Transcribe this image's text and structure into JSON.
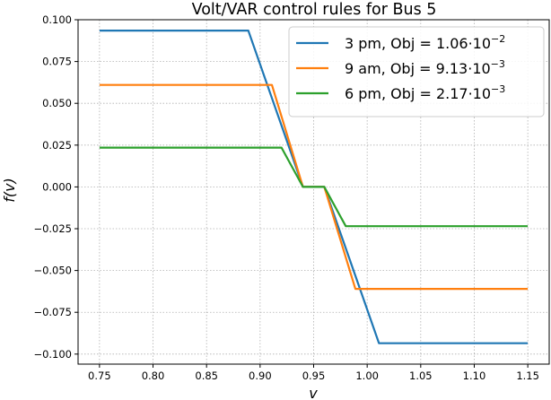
{
  "chart_data": {
    "type": "line",
    "title": "Volt/VAR control rules for Bus 5",
    "xlabel": "v",
    "ylabel": "f(v)",
    "xlim": [
      0.73,
      1.17
    ],
    "ylim": [
      -0.106,
      0.1
    ],
    "xticks": [
      "0.75",
      "0.80",
      "0.85",
      "0.90",
      "0.95",
      "1.00",
      "1.05",
      "1.10",
      "1.15"
    ],
    "yticks": [
      "0.100",
      "0.075",
      "0.050",
      "0.025",
      "0.000",
      "−0.025",
      "−0.050",
      "−0.075",
      "−0.100"
    ],
    "grid": true,
    "legend_position": "top-right",
    "series": [
      {
        "name": "3 pm, Obj = 1.06·10⁻²",
        "legend_main": "3 pm, Obj = 1.06·10",
        "legend_exp": "−2",
        "color": "#1f77b4",
        "x": [
          0.75,
          0.889,
          0.94,
          0.96,
          1.011,
          1.15
        ],
        "y": [
          0.0935,
          0.0935,
          0.0,
          0.0,
          -0.0935,
          -0.0935
        ]
      },
      {
        "name": "9 am, Obj = 9.13·10⁻³",
        "legend_main": "9 am, Obj = 9.13·10",
        "legend_exp": "−3",
        "color": "#ff7f0e",
        "x": [
          0.75,
          0.911,
          0.94,
          0.96,
          0.989,
          1.15
        ],
        "y": [
          0.061,
          0.061,
          0.0,
          0.0,
          -0.061,
          -0.061
        ]
      },
      {
        "name": "6 pm, Obj = 2.17·10⁻³",
        "legend_main": "6 pm, Obj = 2.17·10",
        "legend_exp": "−3",
        "color": "#2ca02c",
        "x": [
          0.75,
          0.92,
          0.94,
          0.96,
          0.98,
          1.15
        ],
        "y": [
          0.0235,
          0.0235,
          0.0,
          0.0,
          -0.0235,
          -0.0235
        ]
      }
    ]
  }
}
